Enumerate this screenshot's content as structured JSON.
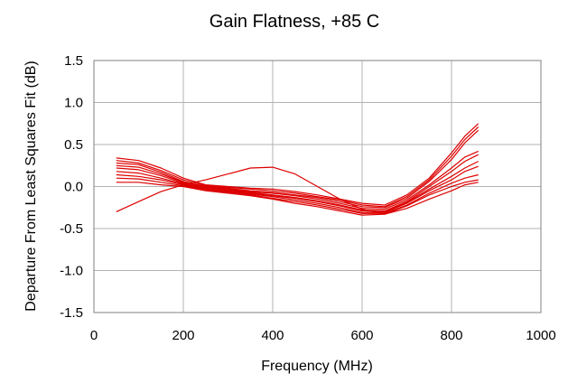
{
  "chart_data": {
    "type": "line",
    "title": "Gain Flatness, +85 C",
    "xlabel": "Frequency (MHz)",
    "ylabel": "Departure From Least Squares Fit (dB)",
    "xlim": [
      0,
      1000
    ],
    "ylim": [
      -1.5,
      1.5
    ],
    "xticks": [
      0,
      200,
      400,
      600,
      800,
      1000
    ],
    "yticks": [
      -1.5,
      -1.0,
      -0.5,
      0.0,
      0.5,
      1.0,
      1.5
    ],
    "xtick_labels": [
      "0",
      "200",
      "400",
      "600",
      "800",
      "1000"
    ],
    "ytick_labels": [
      "-1.5",
      "-1.0",
      "-0.5",
      "0.0",
      "0.5",
      "1.0",
      "1.5"
    ],
    "grid": true,
    "legend": "none",
    "line_color": "#dd0000",
    "grid_color": "#b3b3b3",
    "series": [
      {
        "x": [
          50,
          100,
          150,
          200,
          250,
          300,
          350,
          400,
          450,
          500,
          550,
          600,
          650,
          700,
          750,
          800,
          830,
          860
        ],
        "y": [
          0.34,
          0.31,
          0.22,
          0.1,
          0.02,
          0.0,
          -0.02,
          -0.03,
          -0.06,
          -0.1,
          -0.15,
          -0.2,
          -0.22,
          -0.1,
          0.1,
          0.4,
          0.6,
          0.75
        ]
      },
      {
        "x": [
          50,
          100,
          150,
          200,
          250,
          300,
          350,
          400,
          450,
          500,
          550,
          600,
          650,
          700,
          750,
          800,
          830,
          860
        ],
        "y": [
          0.31,
          0.28,
          0.19,
          0.08,
          0.01,
          -0.01,
          -0.03,
          -0.05,
          -0.08,
          -0.12,
          -0.16,
          -0.22,
          -0.24,
          -0.12,
          0.08,
          0.36,
          0.56,
          0.71
        ]
      },
      {
        "x": [
          50,
          100,
          150,
          200,
          250,
          300,
          350,
          400,
          450,
          500,
          550,
          600,
          650,
          700,
          750,
          800,
          830,
          860
        ],
        "y": [
          0.28,
          0.26,
          0.17,
          0.06,
          0.0,
          -0.02,
          -0.05,
          -0.07,
          -0.1,
          -0.13,
          -0.18,
          -0.24,
          -0.25,
          -0.14,
          0.06,
          0.32,
          0.52,
          0.67
        ]
      },
      {
        "x": [
          50,
          100,
          150,
          200,
          250,
          300,
          350,
          400,
          450,
          500,
          550,
          600,
          650,
          700,
          750,
          800,
          830,
          860
        ],
        "y": [
          0.25,
          0.23,
          0.15,
          0.05,
          -0.01,
          -0.03,
          -0.06,
          -0.08,
          -0.11,
          -0.15,
          -0.2,
          -0.26,
          -0.27,
          -0.16,
          0.02,
          0.22,
          0.35,
          0.42
        ]
      },
      {
        "x": [
          50,
          100,
          150,
          200,
          250,
          300,
          350,
          400,
          450,
          500,
          550,
          600,
          650,
          700,
          750,
          800,
          830,
          860
        ],
        "y": [
          0.22,
          0.2,
          0.13,
          0.04,
          -0.02,
          -0.04,
          -0.07,
          -0.1,
          -0.13,
          -0.17,
          -0.22,
          -0.28,
          -0.29,
          -0.18,
          0.0,
          0.18,
          0.3,
          0.38
        ]
      },
      {
        "x": [
          50,
          100,
          150,
          200,
          250,
          300,
          350,
          400,
          450,
          500,
          550,
          600,
          650,
          700,
          750,
          800,
          830,
          860
        ],
        "y": [
          0.18,
          0.16,
          0.1,
          0.03,
          -0.03,
          -0.05,
          -0.08,
          -0.11,
          -0.14,
          -0.18,
          -0.23,
          -0.29,
          -0.3,
          -0.19,
          -0.03,
          0.12,
          0.22,
          0.3
        ]
      },
      {
        "x": [
          50,
          100,
          150,
          200,
          250,
          300,
          350,
          400,
          450,
          500,
          550,
          600,
          650,
          700,
          750,
          800,
          830,
          860
        ],
        "y": [
          0.14,
          0.12,
          0.08,
          0.02,
          -0.04,
          -0.06,
          -0.09,
          -0.12,
          -0.16,
          -0.2,
          -0.25,
          -0.31,
          -0.31,
          -0.2,
          -0.05,
          0.08,
          0.18,
          0.24
        ]
      },
      {
        "x": [
          50,
          100,
          150,
          200,
          250,
          300,
          350,
          400,
          450,
          500,
          550,
          600,
          650,
          700,
          750,
          800,
          830,
          860
        ],
        "y": [
          0.1,
          0.09,
          0.05,
          0.01,
          -0.04,
          -0.07,
          -0.1,
          -0.14,
          -0.18,
          -0.22,
          -0.27,
          -0.32,
          -0.32,
          -0.22,
          -0.08,
          0.04,
          0.1,
          0.14
        ]
      },
      {
        "x": [
          50,
          100,
          150,
          200,
          250,
          300,
          350,
          400,
          450,
          500,
          550,
          600,
          650,
          700,
          750,
          800,
          830,
          860
        ],
        "y": [
          0.05,
          0.05,
          0.02,
          0.0,
          -0.05,
          -0.08,
          -0.11,
          -0.15,
          -0.2,
          -0.24,
          -0.29,
          -0.34,
          -0.33,
          -0.23,
          -0.1,
          0.0,
          0.05,
          0.08
        ]
      },
      {
        "x": [
          50,
          100,
          150,
          200,
          250,
          300,
          350,
          400,
          450,
          500,
          550,
          600,
          650,
          700,
          750,
          800,
          830,
          860
        ],
        "y": [
          -0.3,
          -0.18,
          -0.06,
          0.02,
          0.08,
          0.15,
          0.22,
          0.23,
          0.15,
          0.0,
          -0.15,
          -0.27,
          -0.33,
          -0.26,
          -0.15,
          -0.05,
          0.02,
          0.05
        ]
      }
    ]
  }
}
